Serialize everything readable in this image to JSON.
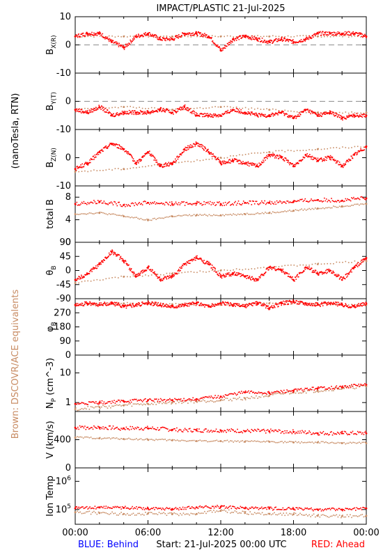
{
  "chart_data": {
    "type": "scatter",
    "title": "IMPACT/PLASTIC   21-Jul-2025",
    "x_tick_labels": [
      "00:00",
      "06:00",
      "12:00",
      "18:00",
      "00:00"
    ],
    "x_range_hours": [
      0,
      24
    ],
    "footer": {
      "left": "BLUE: Behind",
      "center": "Start: 21-Jul-2025 00:00 UTC",
      "right": "RED: Ahead"
    },
    "side_labels": {
      "field_units": "(nanoTesla, RTN)",
      "brown_note": "Brown: DSCOVR/ACE equivalents"
    },
    "colors": {
      "ahead": "#ff0000",
      "equivalents": "#c88c64",
      "behind": "#0000ff"
    },
    "legend_placement": "bottom",
    "panels": [
      {
        "id": "bx",
        "ylabel": "B_X(R)",
        "ylim": [
          -10,
          10
        ],
        "yticks": [
          "10",
          "0",
          "-10"
        ],
        "yticks_values": [
          10,
          0,
          -10
        ],
        "zero_line": true,
        "series": [
          {
            "name": "Ahead",
            "x": [
              0,
              1,
              2,
              3,
              4,
              5,
              6,
              7,
              8,
              9,
              10,
              11,
              12,
              13,
              14,
              15,
              16,
              17,
              18,
              19,
              20,
              21,
              22,
              23,
              24
            ],
            "y": [
              3,
              4,
              4,
              1,
              -1,
              3,
              4,
              2,
              2,
              4,
              4,
              3,
              -2,
              2,
              3,
              2,
              1,
              2,
              1,
              2,
              4,
              4,
              4,
              4,
              3
            ]
          },
          {
            "name": "DSCOVR/ACE",
            "x": [
              0,
              4,
              8,
              12,
              16,
              20,
              24
            ],
            "y": [
              3,
              3,
              3,
              3,
              3,
              3,
              3
            ]
          }
        ]
      },
      {
        "id": "by",
        "ylabel": "B_Y(T)",
        "ylim": [
          -10,
          10
        ],
        "yticks": [
          "0",
          "-10"
        ],
        "yticks_values": [
          0,
          -10
        ],
        "zero_line": true,
        "series": [
          {
            "name": "Ahead",
            "x": [
              0,
              1,
              2,
              3,
              4,
              5,
              6,
              7,
              8,
              9,
              10,
              11,
              12,
              13,
              14,
              15,
              16,
              17,
              18,
              19,
              20,
              21,
              22,
              23,
              24
            ],
            "y": [
              -3,
              -4,
              -2,
              -5,
              -4,
              -4,
              -4,
              -3,
              -4,
              -2,
              -5,
              -5,
              -5,
              -3,
              -4,
              -5,
              -5,
              -4,
              -6,
              -3,
              -5,
              -4,
              -6,
              -5,
              -5
            ]
          },
          {
            "name": "DSCOVR/ACE",
            "x": [
              0,
              4,
              8,
              12,
              16,
              20,
              24
            ],
            "y": [
              -3,
              -2,
              -3,
              -2,
              -3,
              -4,
              -4
            ]
          }
        ]
      },
      {
        "id": "bz",
        "ylabel": "B_Z(N)",
        "ylim": [
          -10,
          10
        ],
        "yticks": [
          "0",
          "-10"
        ],
        "yticks_values": [
          0,
          -10
        ],
        "zero_line": false,
        "series": [
          {
            "name": "Ahead",
            "x": [
              0,
              1,
              2,
              3,
              4,
              5,
              6,
              7,
              8,
              9,
              10,
              11,
              12,
              13,
              14,
              15,
              16,
              17,
              18,
              19,
              20,
              21,
              22,
              23,
              24
            ],
            "y": [
              -4,
              -2,
              2,
              5,
              3,
              -2,
              2,
              -3,
              -2,
              3,
              5,
              2,
              -2,
              -1,
              -2,
              -3,
              1,
              0,
              -3,
              1,
              -1,
              0,
              -3,
              1,
              4
            ]
          },
          {
            "name": "DSCOVR/ACE",
            "x": [
              0,
              4,
              8,
              12,
              16,
              20,
              24
            ],
            "y": [
              -5,
              -4,
              -2,
              0,
              2,
              3,
              4
            ]
          }
        ]
      },
      {
        "id": "totb",
        "ylabel": "total B",
        "ylim": [
          0,
          10
        ],
        "yticks": [
          "8",
          "4",
          "0"
        ],
        "yticks_values": [
          8,
          4,
          0
        ],
        "zero_line": false,
        "series": [
          {
            "name": "Ahead",
            "x": [
              0,
              2,
              4,
              6,
              8,
              10,
              12,
              14,
              16,
              18,
              20,
              22,
              24
            ],
            "y": [
              6.8,
              7.2,
              6.6,
              7.0,
              6.8,
              6.9,
              6.8,
              7.0,
              7.0,
              7.2,
              7.5,
              7.4,
              7.8
            ]
          },
          {
            "name": "DSCOVR/ACE",
            "x": [
              0,
              2,
              4,
              6,
              8,
              10,
              12,
              14,
              16,
              18,
              20,
              22,
              24
            ],
            "y": [
              5.0,
              5.2,
              4.6,
              3.9,
              4.6,
              4.8,
              4.8,
              5.0,
              5.2,
              5.6,
              6.0,
              6.4,
              6.8
            ]
          }
        ]
      },
      {
        "id": "theta",
        "ylabel": "θ_B",
        "ylim": [
          -90,
          90
        ],
        "yticks": [
          "90",
          "45",
          "0",
          "-45",
          "-90"
        ],
        "yticks_values": [
          90,
          45,
          0,
          -45,
          -90
        ],
        "zero_line": false,
        "series": [
          {
            "name": "Ahead",
            "x": [
              0,
              1,
              2,
              3,
              4,
              5,
              6,
              7,
              8,
              9,
              10,
              11,
              12,
              13,
              14,
              15,
              16,
              17,
              18,
              19,
              20,
              21,
              22,
              23,
              24
            ],
            "y": [
              -30,
              -10,
              20,
              60,
              30,
              -20,
              10,
              -30,
              -20,
              20,
              40,
              20,
              -20,
              -10,
              -20,
              -30,
              10,
              0,
              -30,
              10,
              -10,
              0,
              -30,
              10,
              40
            ]
          },
          {
            "name": "DSCOVR/ACE",
            "x": [
              0,
              4,
              8,
              12,
              16,
              20,
              24
            ],
            "y": [
              -40,
              -20,
              -10,
              0,
              10,
              20,
              30
            ]
          }
        ]
      },
      {
        "id": "phi",
        "ylabel": "φ_B",
        "ylim": [
          0,
          360
        ],
        "yticks": [
          "270",
          "180",
          "90",
          "0"
        ],
        "yticks_values": [
          270,
          180,
          90,
          0
        ],
        "zero_line": false,
        "series": [
          {
            "name": "Ahead",
            "x": [
              0,
              1,
              2,
              3,
              4,
              5,
              6,
              7,
              8,
              9,
              10,
              11,
              12,
              13,
              14,
              15,
              16,
              17,
              18,
              19,
              20,
              21,
              22,
              23,
              24
            ],
            "y": [
              320,
              330,
              320,
              330,
              310,
              320,
              330,
              320,
              310,
              320,
              330,
              310,
              330,
              320,
              310,
              330,
              300,
              330,
              340,
              330,
              320,
              330,
              320,
              310,
              330
            ]
          },
          {
            "name": "DSCOVR/ACE",
            "x": [
              0,
              4,
              8,
              12,
              16,
              20,
              24
            ],
            "y": [
              320,
              330,
              325,
              320,
              330,
              325,
              320
            ]
          }
        ]
      },
      {
        "id": "np",
        "ylabel": "N_P (cm^-3)",
        "ylim": [
          0.5,
          40
        ],
        "scale": "log",
        "yticks": [
          "10",
          "1"
        ],
        "yticks_values": [
          10,
          1
        ],
        "zero_line": false,
        "series": [
          {
            "name": "Ahead",
            "x": [
              0,
              2,
              4,
              6,
              8,
              10,
              12,
              14,
              16,
              18,
              20,
              22,
              24
            ],
            "y": [
              0.9,
              1.0,
              1.1,
              1.2,
              1.2,
              1.3,
              1.6,
              2.2,
              2.1,
              2.5,
              3.0,
              3.3,
              4.0
            ]
          },
          {
            "name": "DSCOVR/ACE",
            "x": [
              0,
              2,
              4,
              6,
              8,
              10,
              12,
              14,
              16,
              18,
              20,
              22,
              24
            ],
            "y": [
              0.6,
              0.7,
              0.8,
              0.9,
              1.0,
              1.1,
              1.2,
              1.4,
              1.7,
              2.2,
              2.5,
              3.0,
              3.5
            ]
          }
        ]
      },
      {
        "id": "v",
        "ylabel": "V (km/s)",
        "ylim": [
          0,
          800
        ],
        "yticks": [
          "400",
          "0"
        ],
        "yticks_values": [
          400,
          0
        ],
        "zero_line": false,
        "series": [
          {
            "name": "Ahead",
            "x": [
              0,
              2,
              4,
              6,
              8,
              10,
              12,
              14,
              16,
              18,
              20,
              22,
              24
            ],
            "y": [
              570,
              570,
              560,
              560,
              540,
              530,
              530,
              520,
              520,
              510,
              490,
              490,
              490
            ]
          },
          {
            "name": "DSCOVR/ACE",
            "x": [
              0,
              2,
              4,
              6,
              8,
              10,
              12,
              14,
              16,
              18,
              20,
              22,
              24
            ],
            "y": [
              430,
              420,
              410,
              400,
              390,
              380,
              380,
              370,
              370,
              360,
              360,
              350,
              350
            ]
          }
        ]
      },
      {
        "id": "temp",
        "ylabel": "Ion Temp",
        "ylim": [
          30000,
          3000000
        ],
        "scale": "log",
        "yticks": [
          "10^6",
          "10^5"
        ],
        "yticks_values": [
          1000000,
          100000
        ],
        "zero_line": false,
        "series": [
          {
            "name": "Ahead",
            "x": [
              0,
              2,
              4,
              6,
              8,
              10,
              12,
              14,
              16,
              18,
              20,
              22,
              24
            ],
            "y": [
              110000,
              120000,
              115000,
              110000,
              105000,
              120000,
              125000,
              110000,
              108000,
              105000,
              100000,
              100000,
              110000
            ]
          },
          {
            "name": "DSCOVR/ACE",
            "x": [
              0,
              2,
              4,
              6,
              8,
              10,
              12,
              14,
              16,
              18,
              20,
              22,
              24
            ],
            "y": [
              80000,
              75000,
              70000,
              72000,
              68000,
              70000,
              90000,
              75000,
              70000,
              68000,
              60000,
              58000,
              60000
            ]
          }
        ]
      }
    ]
  }
}
